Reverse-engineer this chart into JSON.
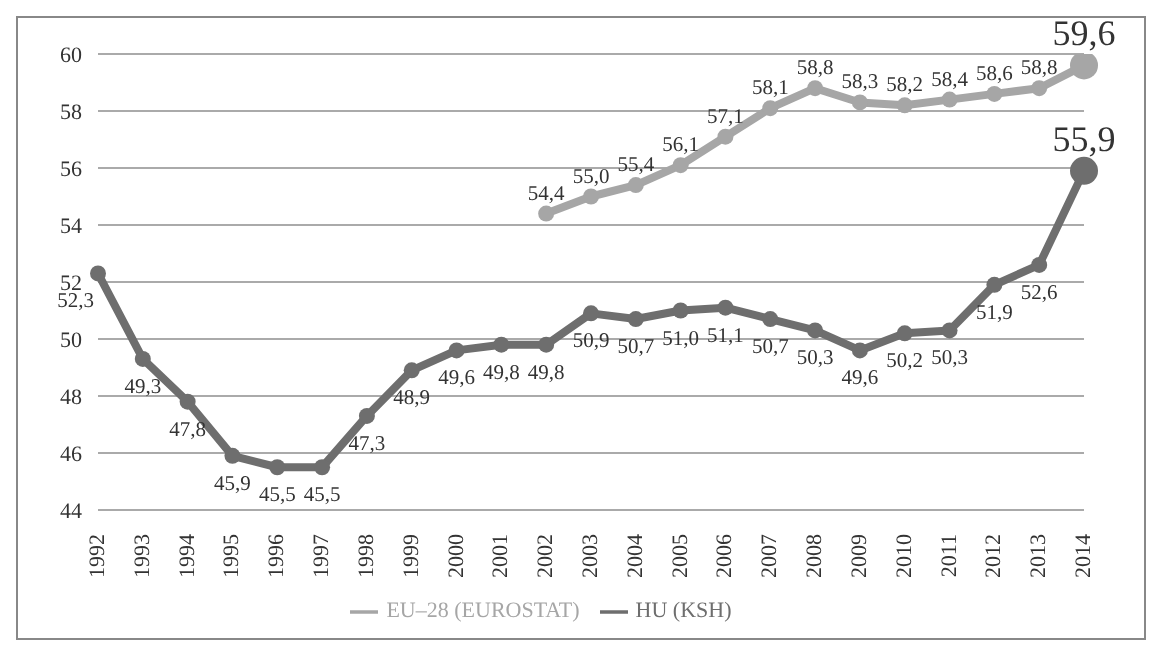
{
  "chart_data": {
    "type": "line",
    "categories": [
      "1992",
      "1993",
      "1994",
      "1995",
      "1996",
      "1997",
      "1998",
      "1999",
      "2000",
      "2001",
      "2002",
      "2003",
      "2004",
      "2005",
      "2006",
      "2007",
      "2008",
      "2009",
      "2010",
      "2011",
      "2012",
      "2013",
      "2014"
    ],
    "series": [
      {
        "name": "EU–28 (EUROSTAT)",
        "color": "#a6a6a6",
        "values": [
          null,
          null,
          null,
          null,
          null,
          null,
          null,
          null,
          null,
          null,
          54.4,
          55.0,
          55.4,
          56.1,
          57.1,
          58.1,
          58.8,
          58.3,
          58.2,
          58.4,
          58.6,
          58.8,
          59.6
        ],
        "value_labels": [
          null,
          null,
          null,
          null,
          null,
          null,
          null,
          null,
          null,
          null,
          "54,4",
          "55,0",
          "55,4",
          "56,1",
          "57,1",
          "58,1",
          "58,8",
          "58,3",
          "58,2",
          "58,4",
          "58,6",
          "58,8",
          "59,6"
        ]
      },
      {
        "name": "HU (KSH)",
        "color": "#6e6e6e",
        "values": [
          52.3,
          49.3,
          47.8,
          45.9,
          45.5,
          45.5,
          47.3,
          48.9,
          49.6,
          49.8,
          49.8,
          50.9,
          50.7,
          51.0,
          51.1,
          50.7,
          50.3,
          49.6,
          50.2,
          50.3,
          51.9,
          52.6,
          55.9
        ],
        "value_labels": [
          "52,3",
          "49,3",
          "47,8",
          "45,9",
          "45,5",
          "45,5",
          "47,3",
          "48,9",
          "49,6",
          "49,8",
          "49,8",
          "50,9",
          "50,7",
          "51,0",
          "51,1",
          "50,7",
          "50,3",
          "49,6",
          "50,2",
          "50,3",
          "51,9",
          "52,6",
          "55,9"
        ]
      }
    ],
    "ylim": [
      44,
      60
    ],
    "yticks": [
      44,
      46,
      48,
      50,
      52,
      54,
      56,
      58,
      60
    ],
    "grid": "y",
    "legend": "bottom",
    "marker": "circle",
    "line_style": "solid"
  }
}
